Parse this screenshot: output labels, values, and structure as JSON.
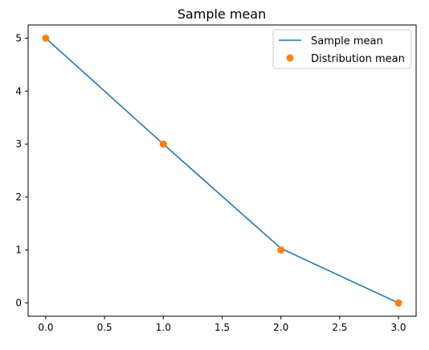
{
  "chart_data": {
    "type": "line",
    "title": "Sample mean",
    "xlabel": "",
    "ylabel": "",
    "x": [
      0,
      1,
      2,
      3
    ],
    "series": [
      {
        "name": "Sample mean",
        "style": "line",
        "color": "#1f77b4",
        "values": [
          5.0,
          3.0,
          1.03,
          0.0
        ]
      },
      {
        "name": "Distribution mean",
        "style": "markers",
        "color": "#ff7f0e",
        "values": [
          5,
          3,
          1,
          0
        ]
      }
    ],
    "xlim": [
      -0.15,
      3.15
    ],
    "ylim": [
      -0.25,
      5.25
    ],
    "xticks": [
      0.0,
      0.5,
      1.0,
      1.5,
      2.0,
      2.5,
      3.0
    ],
    "xtick_labels": [
      "0.0",
      "0.5",
      "1.0",
      "1.5",
      "2.0",
      "2.5",
      "3.0"
    ],
    "yticks": [
      0,
      1,
      2,
      3,
      4,
      5
    ],
    "ytick_labels": [
      "0",
      "1",
      "2",
      "3",
      "4",
      "5"
    ],
    "grid": false,
    "legend_position": "top-right"
  }
}
